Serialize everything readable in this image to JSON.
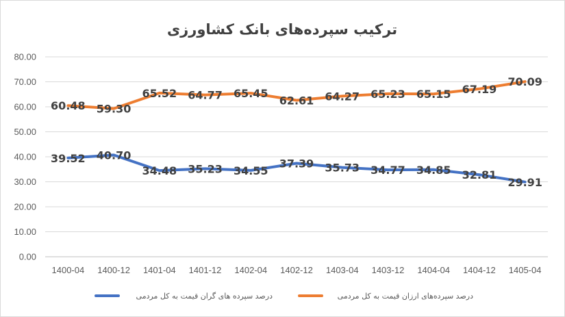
{
  "chart_data": {
    "type": "line",
    "title": "ترکیب سپرده‌های بانک کشاورزی",
    "categories": [
      "1400-04",
      "1400-12",
      "1401-04",
      "1401-12",
      "1402-04",
      "1402-12",
      "1403-04",
      "1403-12",
      "1404-04",
      "1404-12",
      "1405-04"
    ],
    "series": [
      {
        "name": "درصد سپرده‌های ارزان قیمت به کل مردمی",
        "color": "#ed7d31",
        "values": [
          60.48,
          59.3,
          65.52,
          64.77,
          65.45,
          62.61,
          64.27,
          65.23,
          65.15,
          67.19,
          70.09
        ]
      },
      {
        "name": "درصد سپرده های گران قیمت به کل مردمی",
        "color": "#4472c4",
        "values": [
          39.52,
          40.7,
          34.48,
          35.23,
          34.55,
          37.39,
          35.73,
          34.77,
          34.85,
          32.81,
          29.91
        ]
      }
    ],
    "ylim": [
      0,
      80
    ],
    "yticks": [
      "0.00",
      "10.00",
      "20.00",
      "30.00",
      "40.00",
      "50.00",
      "60.00",
      "70.00",
      "80.00"
    ],
    "grid": true,
    "legend_position": "bottom"
  }
}
